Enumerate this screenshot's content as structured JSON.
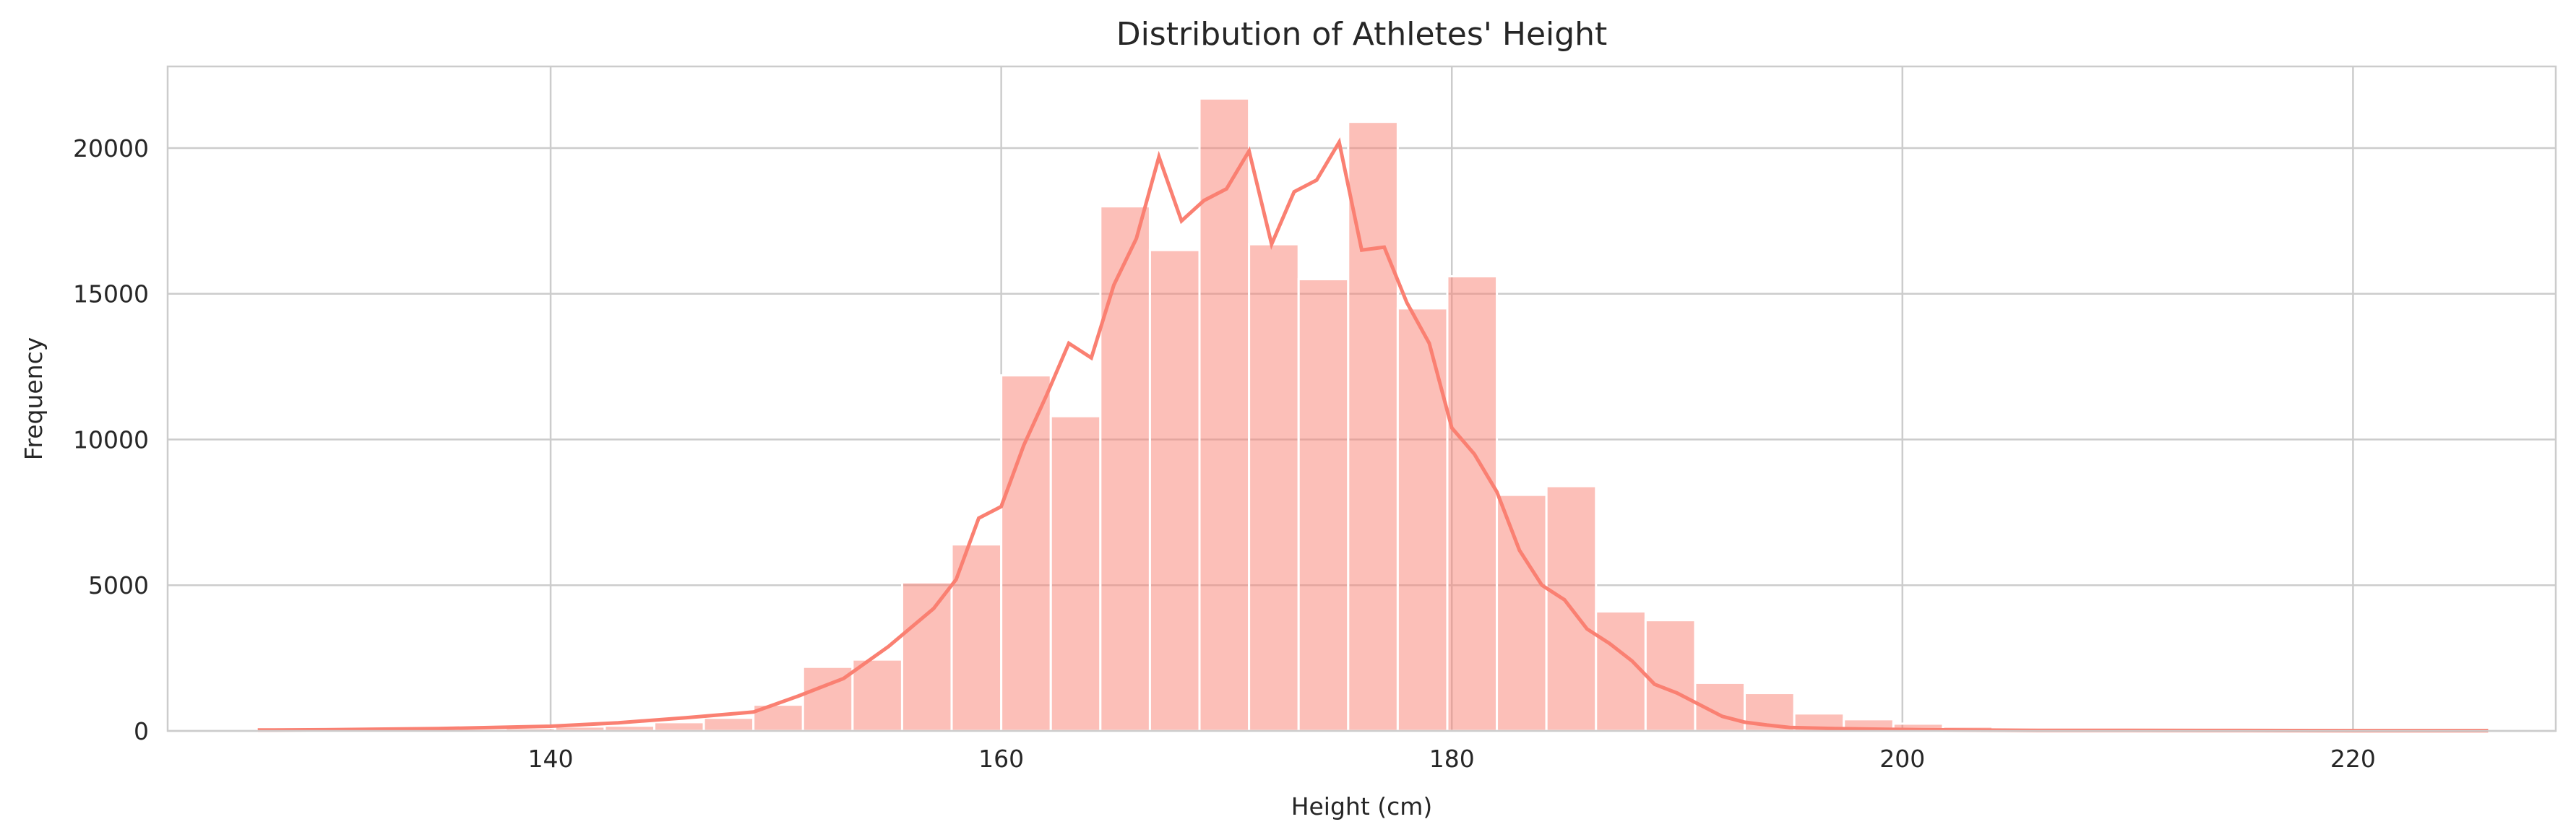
{
  "chart_data": {
    "type": "bar",
    "title": "Distribution of Athletes' Height",
    "xlabel": "Height (cm)",
    "ylabel": "Frequency",
    "xlim": [
      123,
      229
    ],
    "ylim": [
      0,
      22800
    ],
    "xticks": [
      140,
      160,
      180,
      200,
      220
    ],
    "yticks": [
      0,
      5000,
      10000,
      15000,
      20000
    ],
    "grid": true,
    "bar_color": "#fa8072",
    "bar_opacity": 0.5,
    "line_color": "#fa8072",
    "bins": {
      "edges": [
        127,
        129.2,
        131.4,
        133.6,
        135.8,
        138,
        140.2,
        142.4,
        144.6,
        146.8,
        149,
        151.2,
        153.4,
        155.6,
        157.8,
        160,
        162.2,
        164.4,
        166.6,
        168.8,
        171,
        173.2,
        175.4,
        177.6,
        179.8,
        182,
        184.2,
        186.4,
        188.6,
        190.8,
        193,
        195.2,
        197.4,
        199.6,
        201.8,
        204,
        206.2,
        208.4,
        210.6,
        212.8,
        215,
        217.2,
        219.4,
        221.6,
        223.8,
        226
      ],
      "counts": [
        60,
        20,
        20,
        40,
        60,
        100,
        150,
        180,
        300,
        450,
        900,
        2200,
        2450,
        5100,
        6400,
        12200,
        10800,
        18000,
        16500,
        21700,
        16700,
        15500,
        20900,
        14500,
        15600,
        8100,
        8400,
        4100,
        3800,
        1650,
        1300,
        600,
        400,
        250,
        150,
        100,
        80,
        50,
        40,
        30,
        25,
        20,
        15,
        10,
        10
      ]
    },
    "kde": {
      "x": [
        127,
        130,
        135,
        140,
        143,
        146,
        149,
        151,
        153,
        155,
        157,
        158,
        159,
        160,
        161,
        162,
        163,
        164,
        165,
        166,
        167,
        168,
        169,
        170,
        171,
        172,
        173,
        174,
        175,
        176,
        177,
        178,
        179,
        180,
        181,
        182,
        183,
        184,
        185,
        186,
        187,
        188,
        189,
        190,
        191,
        192,
        193,
        194,
        195,
        197,
        199,
        201,
        203,
        206,
        210,
        215,
        220,
        226
      ],
      "y": [
        30,
        40,
        80,
        160,
        280,
        450,
        650,
        1200,
        1800,
        2900,
        4200,
        5200,
        7300,
        7700,
        9800,
        11500,
        13300,
        12800,
        15300,
        16900,
        19700,
        17500,
        18200,
        18600,
        19900,
        16700,
        18500,
        18900,
        20200,
        16500,
        16600,
        14700,
        13300,
        10400,
        9500,
        8200,
        6200,
        5000,
        4500,
        3500,
        3000,
        2400,
        1600,
        1300,
        900,
        500,
        300,
        200,
        120,
        80,
        60,
        40,
        30,
        20,
        20,
        15,
        10,
        10
      ]
    }
  }
}
